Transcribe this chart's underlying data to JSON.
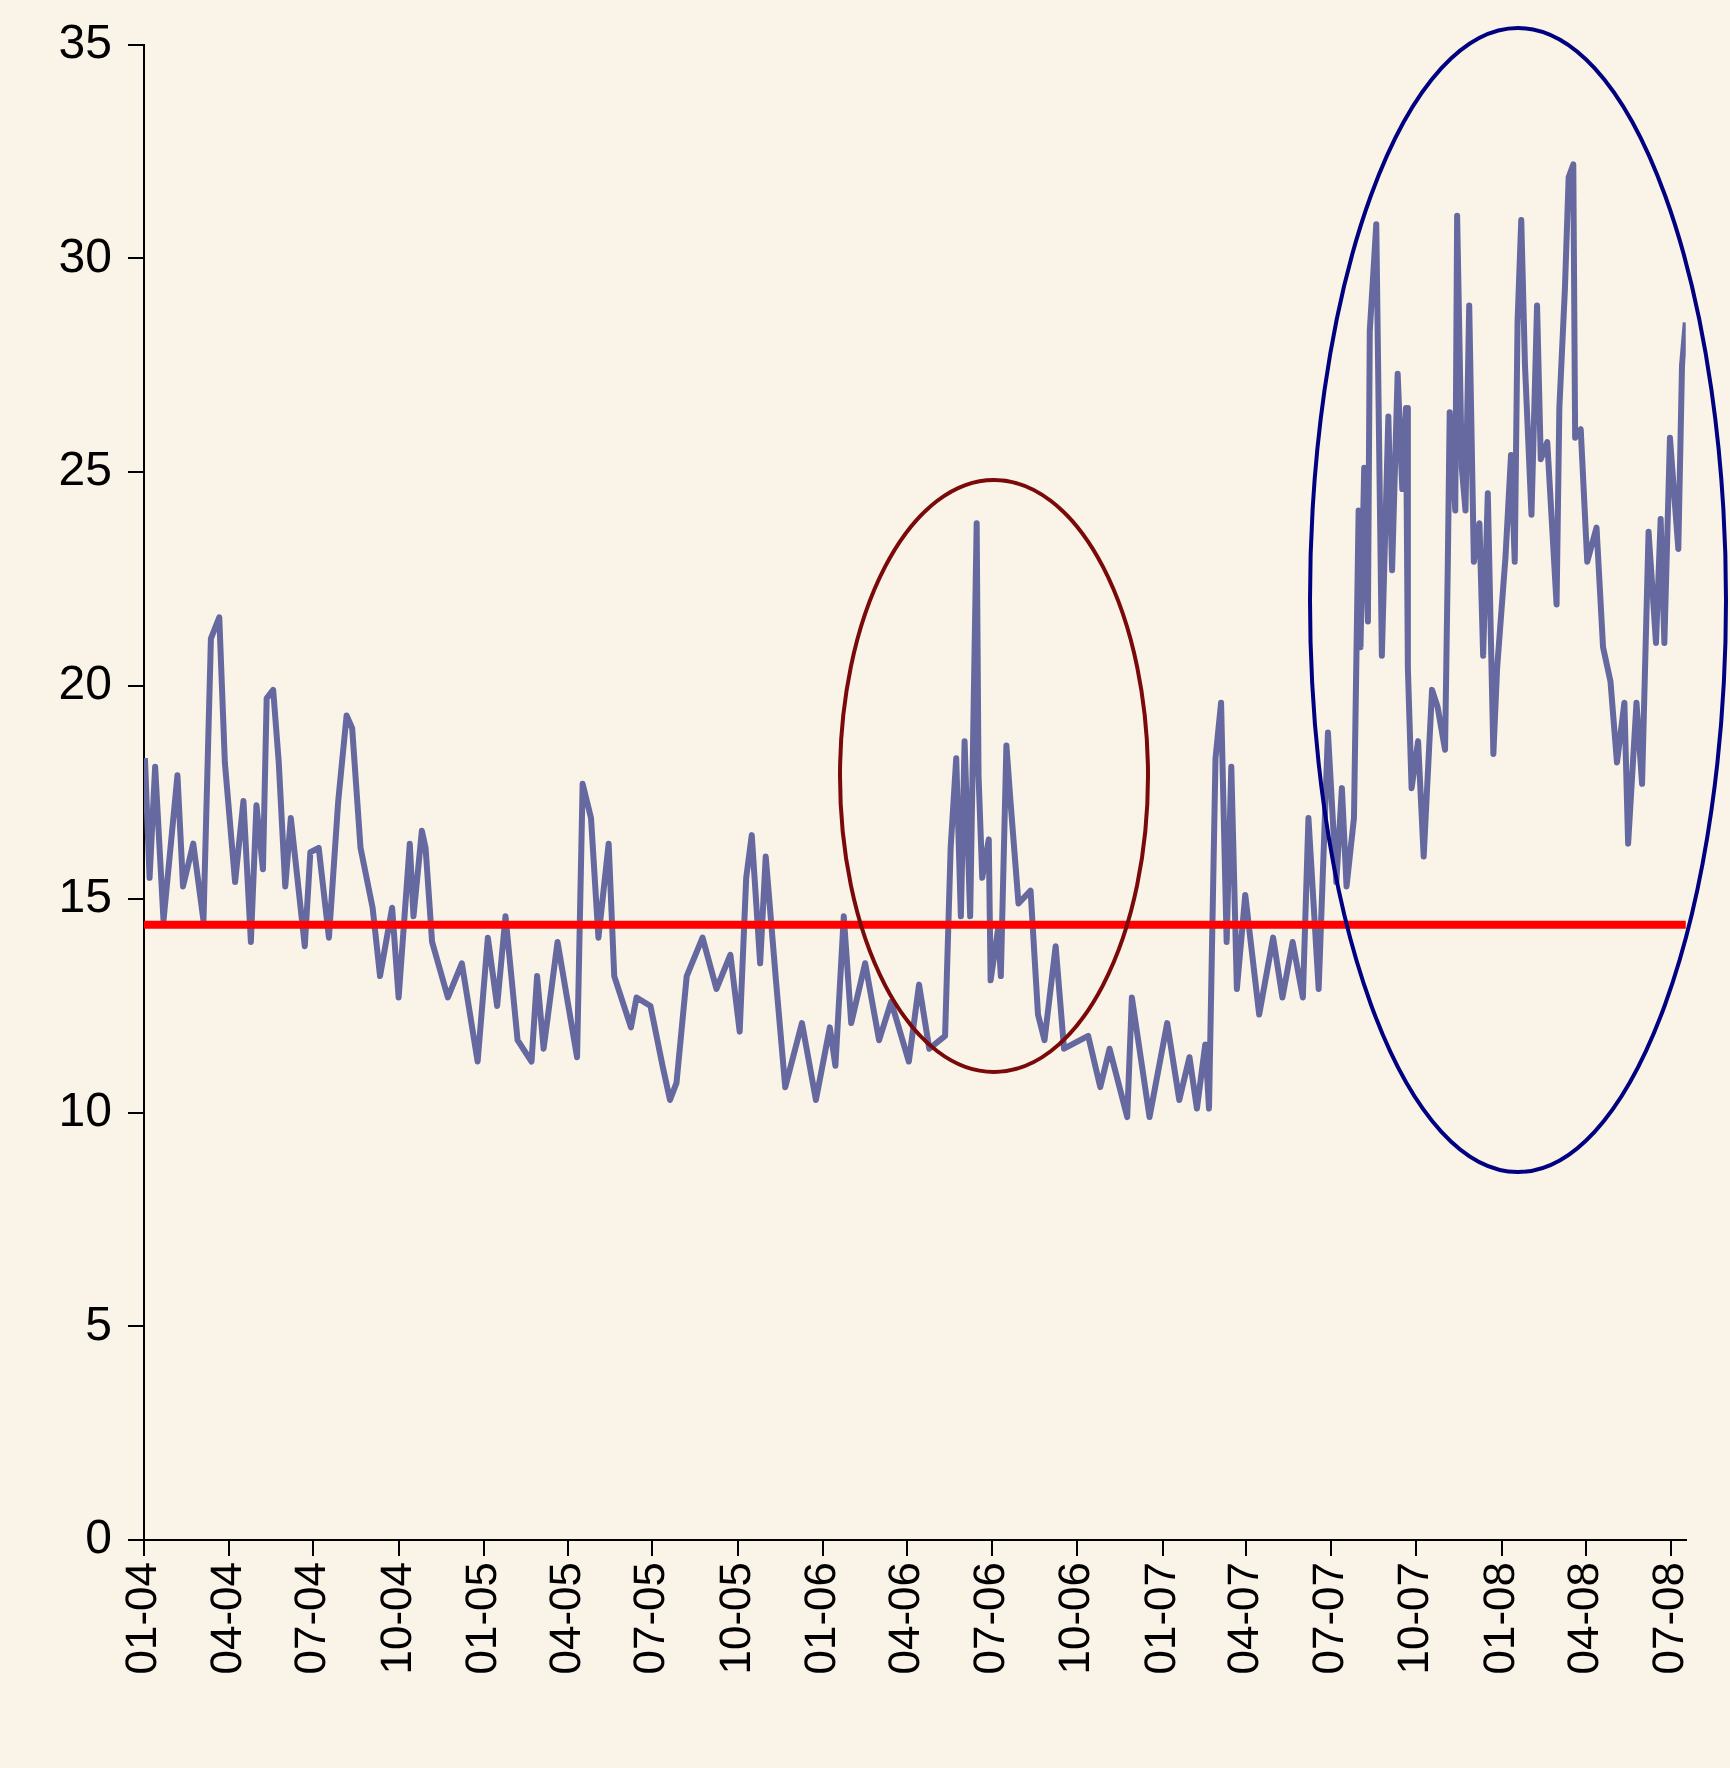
{
  "chart_data": {
    "type": "line",
    "xlim": [
      "2004-01",
      "2008-07-17"
    ],
    "xticks": [
      {
        "value": "2004-01",
        "label": "01-04"
      },
      {
        "value": "2004-04",
        "label": "04-04"
      },
      {
        "value": "2004-07",
        "label": "07-04"
      },
      {
        "value": "2004-10",
        "label": "10-04"
      },
      {
        "value": "2005-01",
        "label": "01-05"
      },
      {
        "value": "2005-04",
        "label": "04-05"
      },
      {
        "value": "2005-07",
        "label": "07-05"
      },
      {
        "value": "2005-10",
        "label": "10-05"
      },
      {
        "value": "2006-01",
        "label": "01-06"
      },
      {
        "value": "2006-04",
        "label": "04-06"
      },
      {
        "value": "2006-07",
        "label": "07-06"
      },
      {
        "value": "2006-10",
        "label": "10-06"
      },
      {
        "value": "2007-01",
        "label": "01-07"
      },
      {
        "value": "2007-04",
        "label": "04-07"
      },
      {
        "value": "2007-07",
        "label": "07-07"
      },
      {
        "value": "2007-10",
        "label": "10-07"
      },
      {
        "value": "2008-01",
        "label": "01-08"
      },
      {
        "value": "2008-04",
        "label": "04-08"
      },
      {
        "value": "2008-07",
        "label": "07-08"
      }
    ],
    "ylim": [
      0,
      35
    ],
    "yticks": [
      0,
      5,
      10,
      15,
      20,
      25,
      30,
      35
    ],
    "ref_lines": [
      {
        "axis": "y",
        "value": 14.4,
        "color": "#ff0000"
      }
    ],
    "series": [
      {
        "color": "#65699f",
        "x": [
          "2004-01-02",
          "2004-01-07",
          "2004-01-13",
          "2004-01-22",
          "2004-02-06",
          "2004-02-12",
          "2004-02-23",
          "2004-03-05",
          "2004-03-13",
          "2004-03-22",
          "2004-03-28",
          "2004-04-08",
          "2004-04-17",
          "2004-04-25",
          "2004-05-01",
          "2004-05-08",
          "2004-05-12",
          "2004-05-19",
          "2004-05-25",
          "2004-06-01",
          "2004-06-07",
          "2004-06-22",
          "2004-06-28",
          "2004-07-07",
          "2004-07-18",
          "2004-07-28",
          "2004-08-06",
          "2004-08-12",
          "2004-08-21",
          "2004-09-03",
          "2004-09-11",
          "2004-09-24",
          "2004-10-01",
          "2004-10-13",
          "2004-10-17",
          "2004-10-26",
          "2004-10-30",
          "2004-11-06",
          "2004-11-23",
          "2004-12-08",
          "2004-12-25",
          "2005-01-05",
          "2005-01-15",
          "2005-01-24",
          "2005-02-06",
          "2005-02-21",
          "2005-02-27",
          "2005-03-06",
          "2005-03-21",
          "2005-04-11",
          "2005-04-17",
          "2005-04-26",
          "2005-05-04",
          "2005-05-15",
          "2005-05-21",
          "2005-06-08",
          "2005-06-14",
          "2005-06-29",
          "2005-07-12",
          "2005-07-20",
          "2005-07-27",
          "2005-08-07",
          "2005-08-24",
          "2005-09-08",
          "2005-09-23",
          "2005-10-03",
          "2005-10-10",
          "2005-10-16",
          "2005-10-25",
          "2005-10-31",
          "2005-11-11",
          "2005-11-21",
          "2005-12-09",
          "2005-12-24",
          "2006-01-08",
          "2006-01-14",
          "2006-01-23",
          "2006-01-31",
          "2006-02-15",
          "2006-03-02",
          "2006-03-15",
          "2006-04-03",
          "2006-04-14",
          "2006-04-25",
          "2006-05-12",
          "2006-05-18",
          "2006-05-24",
          "2006-05-29",
          "2006-06-02",
          "2006-06-08",
          "2006-06-15",
          "2006-06-17",
          "2006-06-21",
          "2006-06-28",
          "2006-06-30",
          "2006-07-08",
          "2006-07-11",
          "2006-07-17",
          "2006-07-21",
          "2006-07-30",
          "2006-08-12",
          "2006-08-20",
          "2006-08-27",
          "2006-09-08",
          "2006-09-17",
          "2006-10-13",
          "2006-10-26",
          "2006-11-05",
          "2006-11-24",
          "2006-11-29",
          "2006-12-18",
          "2007-01-06",
          "2007-01-19",
          "2007-01-30",
          "2007-02-07",
          "2007-02-16",
          "2007-02-20",
          "2007-02-27",
          "2007-03-05",
          "2007-03-11",
          "2007-03-16",
          "2007-03-22",
          "2007-03-31",
          "2007-04-15",
          "2007-04-30",
          "2007-05-10",
          "2007-05-21",
          "2007-06-01",
          "2007-06-07",
          "2007-06-18",
          "2007-06-28",
          "2007-07-07",
          "2007-07-13",
          "2007-07-18",
          "2007-07-26",
          "2007-07-31",
          "2007-08-02",
          "2007-08-06",
          "2007-08-10",
          "2007-08-12",
          "2007-08-19",
          "2007-08-25",
          "2007-09-01",
          "2007-09-05",
          "2007-09-11",
          "2007-09-16",
          "2007-09-20",
          "2007-09-22",
          "2007-09-26",
          "2007-10-03",
          "2007-10-09",
          "2007-10-18",
          "2007-10-24",
          "2007-11-01",
          "2007-11-04",
          "2007-11-06",
          "2007-11-12",
          "2007-11-14",
          "2007-11-19",
          "2007-11-23",
          "2007-11-27",
          "2007-12-02",
          "2007-12-08",
          "2007-12-12",
          "2007-12-17",
          "2007-12-23",
          "2007-12-27",
          "2008-01-05",
          "2008-01-11",
          "2008-01-15",
          "2008-01-18",
          "2008-01-22",
          "2008-01-26",
          "2008-02-02",
          "2008-02-08",
          "2008-02-12",
          "2008-02-19",
          "2008-02-29",
          "2008-03-03",
          "2008-03-09",
          "2008-03-13",
          "2008-03-18",
          "2008-03-20",
          "2008-03-26",
          "2008-04-02",
          "2008-04-12",
          "2008-04-19",
          "2008-04-27",
          "2008-05-04",
          "2008-05-12",
          "2008-05-16",
          "2008-05-25",
          "2008-05-31",
          "2008-06-07",
          "2008-06-15",
          "2008-06-20",
          "2008-06-24",
          "2008-06-30",
          "2008-07-09",
          "2008-07-13",
          "2008-07-17"
        ],
        "values": [
          18.3,
          15.5,
          18.1,
          14.5,
          17.9,
          15.3,
          16.3,
          14.5,
          21.1,
          21.6,
          18.2,
          15.4,
          17.3,
          14.0,
          17.2,
          15.7,
          19.7,
          19.9,
          18.2,
          15.3,
          16.9,
          13.9,
          16.1,
          16.2,
          14.1,
          17.3,
          19.3,
          19.0,
          16.2,
          14.8,
          13.2,
          14.8,
          12.7,
          16.3,
          14.6,
          16.6,
          16.2,
          14.0,
          12.7,
          13.5,
          11.2,
          14.1,
          12.5,
          14.6,
          11.7,
          11.2,
          13.2,
          11.5,
          14.0,
          11.3,
          17.7,
          16.9,
          14.1,
          16.3,
          13.2,
          12.0,
          12.7,
          12.5,
          11.1,
          10.3,
          10.7,
          13.2,
          14.1,
          12.9,
          13.7,
          11.9,
          15.5,
          16.5,
          13.5,
          16.0,
          13.1,
          10.6,
          12.1,
          10.3,
          12.0,
          11.1,
          14.6,
          12.1,
          13.5,
          11.7,
          12.6,
          11.2,
          13.0,
          11.5,
          11.8,
          16.2,
          18.3,
          14.6,
          18.7,
          14.6,
          23.8,
          17.9,
          15.5,
          16.4,
          13.1,
          14.3,
          13.2,
          18.6,
          17.4,
          14.9,
          15.2,
          12.3,
          11.7,
          13.9,
          11.5,
          11.8,
          10.6,
          11.5,
          9.9,
          12.7,
          9.9,
          12.1,
          10.3,
          11.3,
          10.1,
          11.6,
          10.1,
          18.3,
          19.6,
          14.0,
          18.1,
          12.9,
          15.1,
          12.3,
          14.1,
          12.7,
          14.0,
          12.7,
          16.9,
          12.9,
          18.9,
          15.4,
          17.6,
          15.3,
          16.9,
          24.1,
          20.9,
          25.1,
          21.5,
          28.3,
          30.8,
          20.7,
          26.3,
          22.7,
          27.3,
          24.6,
          26.5,
          20.4,
          17.6,
          18.7,
          16.0,
          19.9,
          19.5,
          18.5,
          22.9,
          26.4,
          24.1,
          31.0,
          25.1,
          24.1,
          28.9,
          22.9,
          23.8,
          20.7,
          24.5,
          18.4,
          20.4,
          23.0,
          25.4,
          22.9,
          28.5,
          30.9,
          27.5,
          24.0,
          28.9,
          25.3,
          25.7,
          21.9,
          26.5,
          29.3,
          31.9,
          32.2,
          25.8,
          26.0,
          22.9,
          23.7,
          20.9,
          20.1,
          18.2,
          19.6,
          16.3,
          19.6,
          17.7,
          23.6,
          21.0,
          23.9,
          21.0,
          25.8,
          23.2,
          27.5,
          28.5
        ]
      }
    ]
  }
}
